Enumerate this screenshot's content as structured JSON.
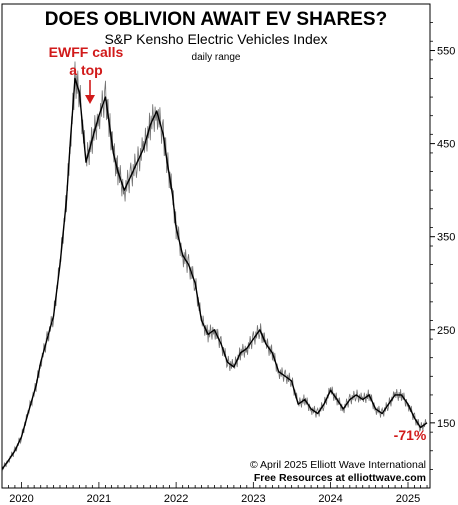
{
  "chart_data": {
    "type": "line",
    "title": "DOES OBLIVION AWAIT EV SHARES?",
    "subtitle": "S&P Kensho Electric Vehicles Index",
    "note": "daily range",
    "x_tick_labels": [
      "2020",
      "2021",
      "2022",
      "2023",
      "2024",
      "2025"
    ],
    "y_ticks": [
      150,
      250,
      350,
      450,
      550
    ],
    "ylim": [
      80,
      600
    ],
    "xlim": [
      "2019-10-01",
      "2025-04-15"
    ],
    "series": [
      {
        "x": [
          "2019-10-01",
          "2019-11-01",
          "2019-12-01",
          "2020-01-01",
          "2020-02-01",
          "2020-03-10",
          "2020-04-01",
          "2020-05-01",
          "2020-06-01",
          "2020-07-01",
          "2020-08-01",
          "2020-08-20",
          "2020-09-10",
          "2020-10-01",
          "2020-11-01",
          "2020-12-01",
          "2021-01-01",
          "2021-02-01",
          "2021-02-20",
          "2021-03-10",
          "2021-04-01",
          "2021-05-01",
          "2021-06-01",
          "2021-07-01",
          "2021-08-01",
          "2021-09-01",
          "2021-10-01",
          "2021-11-01",
          "2021-11-20",
          "2021-12-15",
          "2022-01-01",
          "2022-02-01",
          "2022-03-01",
          "2022-04-01",
          "2022-05-01",
          "2022-06-01",
          "2022-07-01",
          "2022-08-01",
          "2022-09-01",
          "2022-10-01",
          "2022-11-01",
          "2022-12-01",
          "2023-01-01",
          "2023-02-01",
          "2023-03-01",
          "2023-04-01",
          "2023-05-01",
          "2023-06-01",
          "2023-07-01",
          "2023-08-01",
          "2023-09-01",
          "2023-10-01",
          "2023-11-01",
          "2023-12-01",
          "2024-01-01",
          "2024-02-01",
          "2024-03-01",
          "2024-04-01",
          "2024-05-01",
          "2024-06-01",
          "2024-07-01",
          "2024-08-01",
          "2024-09-01",
          "2024-10-01",
          "2024-11-01",
          "2024-12-01",
          "2025-01-01",
          "2025-02-01",
          "2025-03-01",
          "2025-04-01"
        ],
        "y": [
          100,
          110,
          120,
          135,
          160,
          190,
          215,
          240,
          265,
          320,
          390,
          455,
          520,
          505,
          430,
          455,
          480,
          500,
          470,
          440,
          420,
          400,
          415,
          430,
          445,
          470,
          485,
          460,
          430,
          395,
          360,
          330,
          320,
          300,
          260,
          245,
          250,
          235,
          215,
          210,
          225,
          230,
          240,
          250,
          235,
          225,
          205,
          200,
          195,
          170,
          175,
          165,
          160,
          170,
          185,
          175,
          165,
          175,
          180,
          175,
          180,
          165,
          160,
          170,
          180,
          180,
          170,
          155,
          145,
          150
        ]
      }
    ],
    "annotations": {
      "peak_label_line1": "EWFF calls",
      "peak_label_line2": "a top",
      "decline_label": "-71%"
    }
  },
  "credits": {
    "line1": "© April 2025  Elliott Wave International",
    "line2": "Free Resources at elliottwave.com"
  },
  "colors": {
    "price_line": "#000000",
    "annotation": "#d11a1a",
    "axis": "#000000"
  }
}
